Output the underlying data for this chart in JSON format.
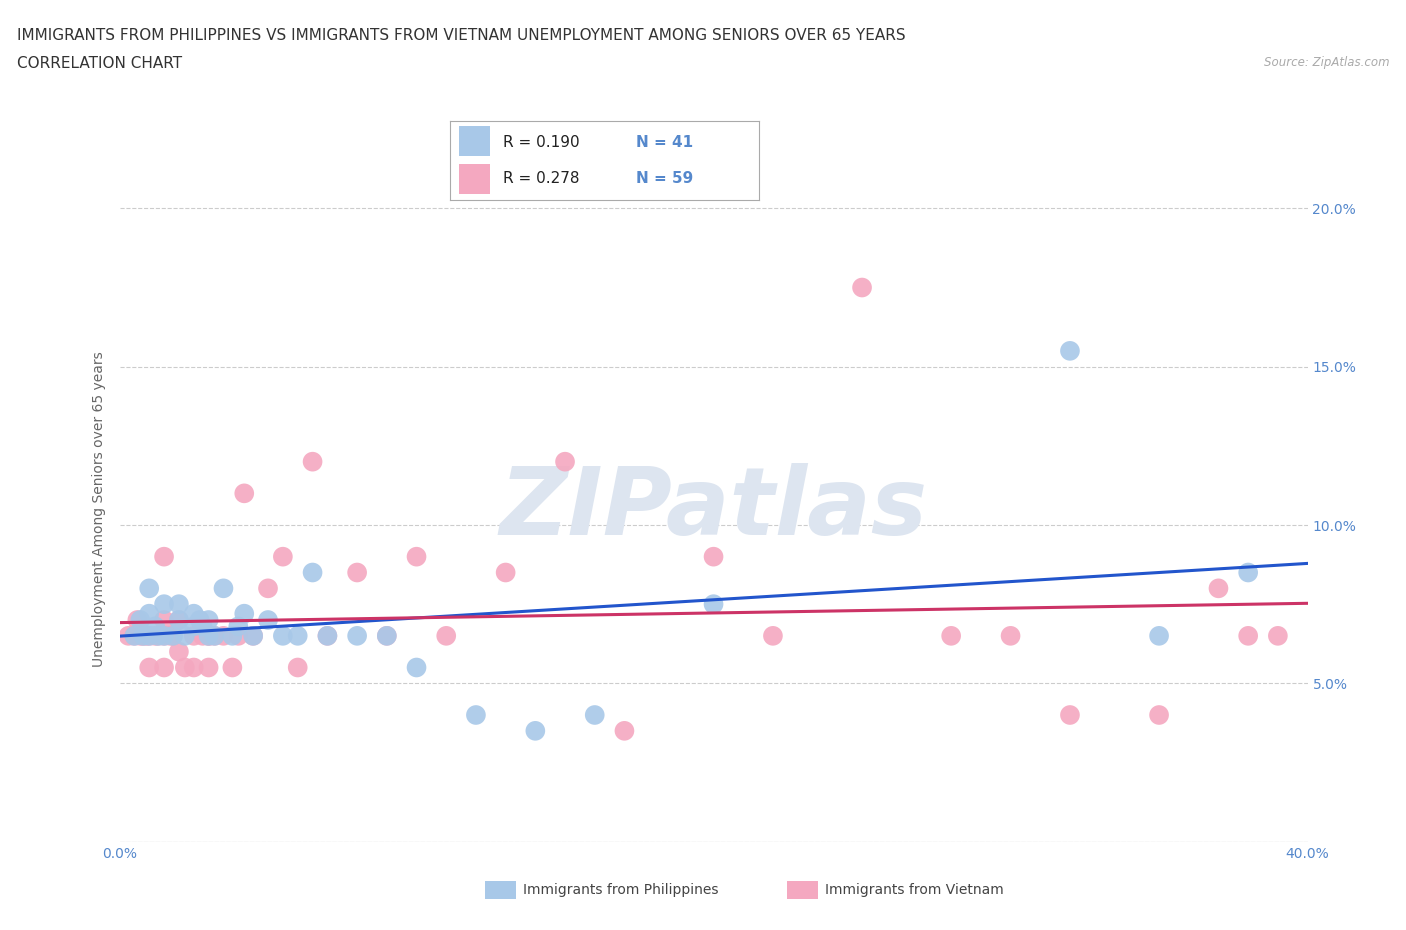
{
  "title_line1": "IMMIGRANTS FROM PHILIPPINES VS IMMIGRANTS FROM VIETNAM UNEMPLOYMENT AMONG SENIORS OVER 65 YEARS",
  "title_line2": "CORRELATION CHART",
  "source_text": "Source: ZipAtlas.com",
  "ylabel": "Unemployment Among Seniors over 65 years",
  "xlim": [
    0.0,
    0.4
  ],
  "ylim": [
    0.0,
    0.21
  ],
  "xticks": [
    0.0,
    0.05,
    0.1,
    0.15,
    0.2,
    0.25,
    0.3,
    0.35,
    0.4
  ],
  "yticks": [
    0.0,
    0.05,
    0.1,
    0.15,
    0.2
  ],
  "color_philippines": "#a8c8e8",
  "color_vietnam": "#f4a8c0",
  "color_trendline_philippines": "#2255cc",
  "color_trendline_vietnam": "#cc3366",
  "watermark_text": "ZIPatlas",
  "watermark_color": "#dde5f0",
  "background_color": "#ffffff",
  "grid_color": "#cccccc",
  "tick_color": "#5588cc",
  "title_fontsize": 11,
  "axis_label_fontsize": 10,
  "tick_fontsize": 10,
  "philippines_x": [
    0.005,
    0.007,
    0.008,
    0.01,
    0.01,
    0.01,
    0.012,
    0.013,
    0.015,
    0.015,
    0.018,
    0.02,
    0.02,
    0.022,
    0.025,
    0.025,
    0.027,
    0.028,
    0.03,
    0.03,
    0.032,
    0.035,
    0.038,
    0.04,
    0.042,
    0.045,
    0.05,
    0.055,
    0.06,
    0.065,
    0.07,
    0.08,
    0.09,
    0.1,
    0.12,
    0.14,
    0.16,
    0.2,
    0.32,
    0.35,
    0.38
  ],
  "philippines_y": [
    0.065,
    0.07,
    0.065,
    0.065,
    0.072,
    0.08,
    0.068,
    0.065,
    0.065,
    0.075,
    0.065,
    0.07,
    0.075,
    0.065,
    0.068,
    0.072,
    0.07,
    0.068,
    0.065,
    0.07,
    0.065,
    0.08,
    0.065,
    0.068,
    0.072,
    0.065,
    0.07,
    0.065,
    0.065,
    0.085,
    0.065,
    0.065,
    0.065,
    0.055,
    0.04,
    0.035,
    0.04,
    0.075,
    0.155,
    0.065,
    0.085
  ],
  "vietnam_x": [
    0.003,
    0.005,
    0.006,
    0.007,
    0.008,
    0.009,
    0.01,
    0.01,
    0.012,
    0.013,
    0.015,
    0.015,
    0.015,
    0.015,
    0.017,
    0.018,
    0.02,
    0.02,
    0.022,
    0.025,
    0.025,
    0.028,
    0.03,
    0.03,
    0.03,
    0.032,
    0.035,
    0.038,
    0.04,
    0.042,
    0.045,
    0.05,
    0.055,
    0.06,
    0.065,
    0.07,
    0.08,
    0.09,
    0.1,
    0.11,
    0.13,
    0.15,
    0.17,
    0.2,
    0.22,
    0.25,
    0.28,
    0.3,
    0.32,
    0.35,
    0.37,
    0.38,
    0.39
  ],
  "vietnam_y": [
    0.065,
    0.065,
    0.07,
    0.065,
    0.065,
    0.065,
    0.065,
    0.055,
    0.065,
    0.065,
    0.055,
    0.065,
    0.07,
    0.09,
    0.065,
    0.065,
    0.06,
    0.07,
    0.055,
    0.065,
    0.055,
    0.065,
    0.065,
    0.055,
    0.065,
    0.065,
    0.065,
    0.055,
    0.065,
    0.11,
    0.065,
    0.08,
    0.09,
    0.055,
    0.12,
    0.065,
    0.085,
    0.065,
    0.09,
    0.065,
    0.085,
    0.12,
    0.035,
    0.09,
    0.065,
    0.175,
    0.065,
    0.065,
    0.04,
    0.04,
    0.08,
    0.065,
    0.065
  ]
}
